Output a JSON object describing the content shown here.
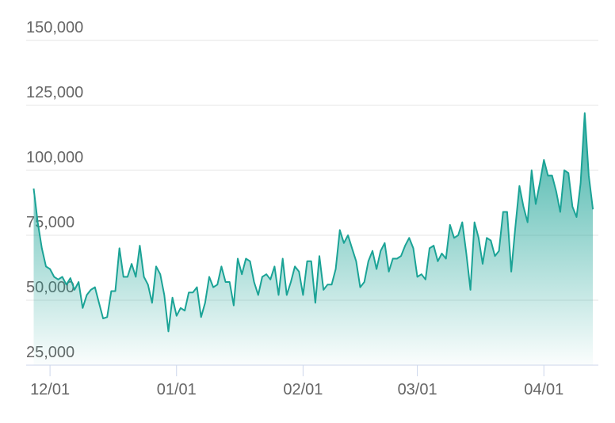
{
  "chart_data": {
    "type": "area",
    "x": [
      "11/27",
      "11/28",
      "11/29",
      "11/30",
      "12/01",
      "12/02",
      "12/03",
      "12/04",
      "12/05",
      "12/06",
      "12/07",
      "12/08",
      "12/09",
      "12/10",
      "12/11",
      "12/12",
      "12/13",
      "12/14",
      "12/15",
      "12/16",
      "12/17",
      "12/18",
      "12/19",
      "12/20",
      "12/21",
      "12/22",
      "12/23",
      "12/24",
      "12/25",
      "12/26",
      "12/27",
      "12/28",
      "12/29",
      "12/30",
      "12/31",
      "01/01",
      "01/02",
      "01/03",
      "01/04",
      "01/05",
      "01/06",
      "01/07",
      "01/08",
      "01/09",
      "01/10",
      "01/11",
      "01/12",
      "01/13",
      "01/14",
      "01/15",
      "01/16",
      "01/17",
      "01/18",
      "01/19",
      "01/20",
      "01/21",
      "01/22",
      "01/23",
      "01/24",
      "01/25",
      "01/26",
      "01/27",
      "01/28",
      "01/29",
      "01/30",
      "01/31",
      "02/01",
      "02/02",
      "02/03",
      "02/04",
      "02/05",
      "02/06",
      "02/07",
      "02/08",
      "02/09",
      "02/10",
      "02/11",
      "02/12",
      "02/13",
      "02/14",
      "02/15",
      "02/16",
      "02/17",
      "02/18",
      "02/19",
      "02/20",
      "02/21",
      "02/22",
      "02/23",
      "02/24",
      "02/25",
      "02/26",
      "02/27",
      "02/28",
      "03/01",
      "03/02",
      "03/03",
      "03/04",
      "03/05",
      "03/06",
      "03/07",
      "03/08",
      "03/09",
      "03/10",
      "03/11",
      "03/12",
      "03/13",
      "03/14",
      "03/15",
      "03/16",
      "03/17",
      "03/18",
      "03/19",
      "03/20",
      "03/21",
      "03/22",
      "03/23",
      "03/24",
      "03/25",
      "03/26",
      "03/27",
      "03/28",
      "03/29",
      "03/30",
      "03/31",
      "04/01",
      "04/02",
      "04/03",
      "04/04",
      "04/05",
      "04/06",
      "04/07",
      "04/08",
      "04/09",
      "04/10",
      "04/11",
      "04/12",
      "04/13"
    ],
    "series": [
      {
        "color": "#1ba396",
        "values": [
          93000,
          80000,
          70000,
          63000,
          62000,
          59000,
          58000,
          59000,
          56000,
          58500,
          54000,
          57000,
          47000,
          52000,
          54000,
          55000,
          49000,
          43000,
          43500,
          53500,
          53500,
          70000,
          59000,
          59000,
          64000,
          59000,
          71000,
          59000,
          56000,
          49000,
          63000,
          60000,
          52000,
          38000,
          51000,
          44000,
          47000,
          46000,
          53000,
          53000,
          55000,
          43500,
          49000,
          59000,
          55000,
          56000,
          63000,
          57000,
          57000,
          48000,
          66000,
          60000,
          66000,
          65000,
          57000,
          52000,
          59000,
          60000,
          58000,
          63000,
          52000,
          66000,
          52000,
          57000,
          63000,
          61000,
          52000,
          65000,
          65000,
          49000,
          67000,
          54000,
          56000,
          56000,
          62000,
          77000,
          72000,
          75000,
          70000,
          65000,
          55000,
          57000,
          65000,
          69000,
          62000,
          69000,
          72000,
          61000,
          66000,
          66000,
          67000,
          71000,
          74000,
          70000,
          59000,
          60000,
          58000,
          70000,
          71000,
          65000,
          68000,
          66000,
          79000,
          74000,
          75000,
          80000,
          68000,
          54000,
          80000,
          74000,
          64000,
          74000,
          73000,
          67000,
          69000,
          84000,
          84000,
          61000,
          78000,
          94000,
          86000,
          80000,
          100000,
          87000,
          95000,
          104000,
          98000,
          98000,
          92000,
          84000,
          100000,
          99000,
          86000,
          82000,
          95000,
          122000,
          98000,
          85000
        ]
      }
    ],
    "ylim": [
      25000,
      150000
    ],
    "yticks": [
      {
        "value": 25000,
        "label": "25,000"
      },
      {
        "value": 50000,
        "label": "50,000"
      },
      {
        "value": 75000,
        "label": "75,000"
      },
      {
        "value": 100000,
        "label": "100,000"
      },
      {
        "value": 125000,
        "label": "125,000"
      },
      {
        "value": 150000,
        "label": "150,000"
      }
    ],
    "xticks": [
      "12/01",
      "01/01",
      "02/01",
      "03/01",
      "04/01"
    ],
    "grid": true
  }
}
